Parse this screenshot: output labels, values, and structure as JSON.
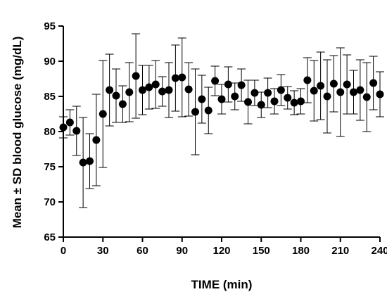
{
  "chart_data": {
    "type": "scatter",
    "title": "",
    "xlabel": "TIME (min)",
    "ylabel": "Mean ± SD blood glucose (mg/dL)",
    "xlim": [
      0,
      240
    ],
    "ylim": [
      65,
      95
    ],
    "xticks": [
      0,
      30,
      60,
      90,
      120,
      150,
      180,
      210,
      240
    ],
    "yticks": [
      65,
      70,
      75,
      80,
      85,
      90,
      95
    ],
    "grid": false,
    "legend": "none",
    "marker_color": "#000000",
    "series": [
      {
        "x": [
          0,
          5,
          10,
          15,
          20,
          25,
          30,
          35,
          40,
          45,
          50,
          55,
          60,
          65,
          70,
          75,
          80,
          85,
          90,
          95,
          100,
          105,
          110,
          115,
          120,
          125,
          130,
          135,
          140,
          145,
          150,
          155,
          160,
          165,
          170,
          175,
          180,
          185,
          190,
          195,
          200,
          205,
          210,
          215,
          220,
          225,
          230,
          235,
          240
        ],
        "y": [
          80.6,
          81.3,
          80.1,
          75.6,
          75.8,
          78.8,
          82.5,
          85.9,
          85.1,
          83.9,
          85.6,
          87.9,
          85.9,
          86.3,
          86.7,
          85.7,
          85.9,
          87.6,
          87.7,
          86.0,
          82.8,
          84.6,
          83.0,
          87.2,
          84.6,
          86.7,
          85.0,
          86.6,
          84.2,
          85.5,
          83.8,
          85.5,
          84.3,
          85.9,
          84.8,
          84.1,
          84.3,
          87.3,
          85.8,
          86.5,
          85.0,
          86.8,
          85.6,
          86.7,
          85.6,
          85.9,
          84.9,
          86.9,
          85.3
        ],
        "sd": [
          1.5,
          1.8,
          3.5,
          6.4,
          3.9,
          6.5,
          7.6,
          5.1,
          3.8,
          2.6,
          4.2,
          6.0,
          3.5,
          3.1,
          3.4,
          2.1,
          3.9,
          4.7,
          5.6,
          3.8,
          6.1,
          3.4,
          3.3,
          2.1,
          2.1,
          2.5,
          1.9,
          2.3,
          3.1,
          1.8,
          1.8,
          2.1,
          1.8,
          2.2,
          1.6,
          1.7,
          1.8,
          3.2,
          4.3,
          4.8,
          5.2,
          4.0,
          6.3,
          4.2,
          3.1,
          4.3,
          4.9,
          3.8,
          3.2
        ]
      }
    ]
  }
}
